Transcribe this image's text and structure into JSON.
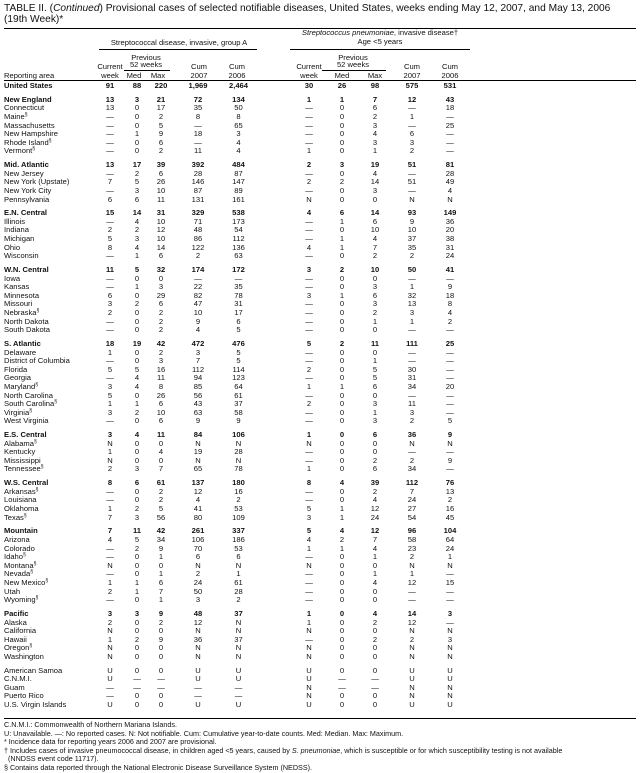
{
  "title": {
    "prefix": "TABLE II. (",
    "continued": "Continued",
    "rest": ") Provisional cases of selected notifiable diseases, United States, weeks ending May 12, 2007, and May 13, 2006",
    "line2": "(19th Week)*"
  },
  "headers": {
    "group_a": "Streptococcal disease, invasive, group A",
    "pneumo_italic": "Streptococcus pneumoniae",
    "pneumo_rest": ", invasive disease†",
    "pneumo_age": "Age <5 years",
    "previous": "Previous",
    "weeks52": "52 weeks",
    "reporting_area": "Reporting area",
    "current": "Current",
    "week": "week",
    "med": "Med",
    "max": "Max",
    "cum": "Cum",
    "y2007": "2007",
    "y2006": "2006"
  },
  "rows": [
    {
      "area": "United States",
      "bold": true,
      "v": [
        "91",
        "88",
        "220",
        "1,969",
        "2,464",
        "30",
        "26",
        "98",
        "575",
        "531"
      ]
    },
    {
      "gap": true
    },
    {
      "area": "New England",
      "bold": true,
      "v": [
        "13",
        "3",
        "21",
        "72",
        "134",
        "1",
        "1",
        "7",
        "12",
        "43"
      ]
    },
    {
      "area": "Connecticut",
      "v": [
        "13",
        "0",
        "17",
        "35",
        "50",
        "—",
        "0",
        "6",
        "—",
        "18"
      ]
    },
    {
      "area": "Maine",
      "note": "§",
      "v": [
        "—",
        "0",
        "2",
        "8",
        "8",
        "—",
        "0",
        "2",
        "1",
        "—"
      ]
    },
    {
      "area": "Massachusetts",
      "v": [
        "—",
        "0",
        "5",
        "—",
        "65",
        "—",
        "0",
        "3",
        "—",
        "25"
      ]
    },
    {
      "area": "New Hampshire",
      "v": [
        "—",
        "1",
        "9",
        "18",
        "3",
        "—",
        "0",
        "4",
        "6",
        "—"
      ]
    },
    {
      "area": "Rhode Island",
      "note": "§",
      "v": [
        "—",
        "0",
        "6",
        "—",
        "4",
        "—",
        "0",
        "3",
        "3",
        "—"
      ]
    },
    {
      "area": "Vermont",
      "note": "§",
      "v": [
        "—",
        "0",
        "2",
        "11",
        "4",
        "1",
        "0",
        "1",
        "2",
        "—"
      ]
    },
    {
      "gap": true
    },
    {
      "area": "Mid. Atlantic",
      "bold": true,
      "v": [
        "13",
        "17",
        "39",
        "392",
        "484",
        "2",
        "3",
        "19",
        "51",
        "81"
      ]
    },
    {
      "area": "New Jersey",
      "v": [
        "—",
        "2",
        "6",
        "28",
        "87",
        "—",
        "0",
        "4",
        "—",
        "28"
      ]
    },
    {
      "area": "New York (Upstate)",
      "v": [
        "7",
        "5",
        "26",
        "146",
        "147",
        "2",
        "2",
        "14",
        "51",
        "49"
      ]
    },
    {
      "area": "New York City",
      "v": [
        "—",
        "3",
        "10",
        "87",
        "89",
        "—",
        "0",
        "3",
        "—",
        "4"
      ]
    },
    {
      "area": "Pennsylvania",
      "v": [
        "6",
        "6",
        "11",
        "131",
        "161",
        "N",
        "0",
        "0",
        "N",
        "N"
      ]
    },
    {
      "gap": true
    },
    {
      "area": "E.N. Central",
      "bold": true,
      "v": [
        "15",
        "14",
        "31",
        "329",
        "538",
        "4",
        "6",
        "14",
        "93",
        "149"
      ]
    },
    {
      "area": "Illinois",
      "v": [
        "—",
        "4",
        "10",
        "71",
        "173",
        "—",
        "1",
        "6",
        "9",
        "36"
      ]
    },
    {
      "area": "Indiana",
      "v": [
        "2",
        "2",
        "12",
        "48",
        "54",
        "—",
        "0",
        "10",
        "10",
        "20"
      ]
    },
    {
      "area": "Michigan",
      "v": [
        "5",
        "3",
        "10",
        "86",
        "112",
        "—",
        "1",
        "4",
        "37",
        "38"
      ]
    },
    {
      "area": "Ohio",
      "v": [
        "8",
        "4",
        "14",
        "122",
        "136",
        "4",
        "1",
        "7",
        "35",
        "31"
      ]
    },
    {
      "area": "Wisconsin",
      "v": [
        "—",
        "1",
        "6",
        "2",
        "63",
        "—",
        "0",
        "2",
        "2",
        "24"
      ]
    },
    {
      "gap": true
    },
    {
      "area": "W.N. Central",
      "bold": true,
      "v": [
        "11",
        "5",
        "32",
        "174",
        "172",
        "3",
        "2",
        "10",
        "50",
        "41"
      ]
    },
    {
      "area": "Iowa",
      "v": [
        "—",
        "0",
        "0",
        "—",
        "—",
        "—",
        "0",
        "0",
        "—",
        "—"
      ]
    },
    {
      "area": "Kansas",
      "v": [
        "—",
        "1",
        "3",
        "22",
        "35",
        "—",
        "0",
        "3",
        "1",
        "9"
      ]
    },
    {
      "area": "Minnesota",
      "v": [
        "6",
        "0",
        "29",
        "82",
        "78",
        "3",
        "1",
        "6",
        "32",
        "18"
      ]
    },
    {
      "area": "Missouri",
      "v": [
        "3",
        "2",
        "6",
        "47",
        "31",
        "—",
        "0",
        "3",
        "13",
        "8"
      ]
    },
    {
      "area": "Nebraska",
      "note": "§",
      "v": [
        "2",
        "0",
        "2",
        "10",
        "17",
        "—",
        "0",
        "2",
        "3",
        "4"
      ]
    },
    {
      "area": "North Dakota",
      "v": [
        "—",
        "0",
        "2",
        "9",
        "6",
        "—",
        "0",
        "1",
        "1",
        "2"
      ]
    },
    {
      "area": "South Dakota",
      "v": [
        "—",
        "0",
        "2",
        "4",
        "5",
        "—",
        "0",
        "0",
        "—",
        "—"
      ]
    },
    {
      "gap": true
    },
    {
      "area": "S. Atlantic",
      "bold": true,
      "v": [
        "18",
        "19",
        "42",
        "472",
        "476",
        "5",
        "2",
        "11",
        "111",
        "25"
      ]
    },
    {
      "area": "Delaware",
      "v": [
        "1",
        "0",
        "2",
        "3",
        "5",
        "—",
        "0",
        "0",
        "—",
        "—"
      ]
    },
    {
      "area": "District of Columbia",
      "v": [
        "—",
        "0",
        "3",
        "7",
        "5",
        "—",
        "0",
        "1",
        "—",
        "—"
      ]
    },
    {
      "area": "Florida",
      "v": [
        "5",
        "5",
        "16",
        "112",
        "114",
        "2",
        "0",
        "5",
        "30",
        "—"
      ]
    },
    {
      "area": "Georgia",
      "v": [
        "—",
        "4",
        "11",
        "94",
        "123",
        "—",
        "0",
        "5",
        "31",
        "—"
      ]
    },
    {
      "area": "Maryland",
      "note": "§",
      "v": [
        "3",
        "4",
        "8",
        "85",
        "64",
        "1",
        "1",
        "6",
        "34",
        "20"
      ]
    },
    {
      "area": "North Carolina",
      "v": [
        "5",
        "0",
        "26",
        "56",
        "61",
        "—",
        "0",
        "0",
        "—",
        "—"
      ]
    },
    {
      "area": "South Carolina",
      "note": "§",
      "v": [
        "1",
        "1",
        "6",
        "43",
        "37",
        "2",
        "0",
        "3",
        "11",
        "—"
      ]
    },
    {
      "area": "Virginia",
      "note": "§",
      "v": [
        "3",
        "2",
        "10",
        "63",
        "58",
        "—",
        "0",
        "1",
        "3",
        "—"
      ]
    },
    {
      "area": "West Virginia",
      "v": [
        "—",
        "0",
        "6",
        "9",
        "9",
        "—",
        "0",
        "3",
        "2",
        "5"
      ]
    },
    {
      "gap": true
    },
    {
      "area": "E.S. Central",
      "bold": true,
      "v": [
        "3",
        "4",
        "11",
        "84",
        "106",
        "1",
        "0",
        "6",
        "36",
        "9"
      ]
    },
    {
      "area": "Alabama",
      "note": "§",
      "v": [
        "N",
        "0",
        "0",
        "N",
        "N",
        "N",
        "0",
        "0",
        "N",
        "N"
      ]
    },
    {
      "area": "Kentucky",
      "v": [
        "1",
        "0",
        "4",
        "19",
        "28",
        "—",
        "0",
        "0",
        "—",
        "—"
      ]
    },
    {
      "area": "Mississippi",
      "v": [
        "N",
        "0",
        "0",
        "N",
        "N",
        "—",
        "0",
        "2",
        "2",
        "9"
      ]
    },
    {
      "area": "Tennessee",
      "note": "§",
      "v": [
        "2",
        "3",
        "7",
        "65",
        "78",
        "1",
        "0",
        "6",
        "34",
        "—"
      ]
    },
    {
      "gap": true
    },
    {
      "area": "W.S. Central",
      "bold": true,
      "v": [
        "8",
        "6",
        "61",
        "137",
        "180",
        "8",
        "4",
        "39",
        "112",
        "76"
      ]
    },
    {
      "area": "Arkansas",
      "note": "§",
      "v": [
        "—",
        "0",
        "2",
        "12",
        "16",
        "—",
        "0",
        "2",
        "7",
        "13"
      ]
    },
    {
      "area": "Louisiana",
      "v": [
        "—",
        "0",
        "2",
        "4",
        "2",
        "—",
        "0",
        "4",
        "24",
        "2"
      ]
    },
    {
      "area": "Oklahoma",
      "v": [
        "1",
        "2",
        "5",
        "41",
        "53",
        "5",
        "1",
        "12",
        "27",
        "16"
      ]
    },
    {
      "area": "Texas",
      "note": "§",
      "v": [
        "7",
        "3",
        "56",
        "80",
        "109",
        "3",
        "1",
        "24",
        "54",
        "45"
      ]
    },
    {
      "gap": true
    },
    {
      "area": "Mountain",
      "bold": true,
      "v": [
        "7",
        "11",
        "42",
        "261",
        "337",
        "5",
        "4",
        "12",
        "96",
        "104"
      ]
    },
    {
      "area": "Arizona",
      "v": [
        "4",
        "5",
        "34",
        "106",
        "186",
        "4",
        "2",
        "7",
        "58",
        "64"
      ]
    },
    {
      "area": "Colorado",
      "v": [
        "—",
        "2",
        "9",
        "70",
        "53",
        "1",
        "1",
        "4",
        "23",
        "24"
      ]
    },
    {
      "area": "Idaho",
      "note": "§",
      "v": [
        "—",
        "0",
        "1",
        "6",
        "6",
        "—",
        "0",
        "1",
        "2",
        "1"
      ]
    },
    {
      "area": "Montana",
      "note": "§",
      "v": [
        "N",
        "0",
        "0",
        "N",
        "N",
        "N",
        "0",
        "0",
        "N",
        "N"
      ]
    },
    {
      "area": "Nevada",
      "note": "§",
      "v": [
        "—",
        "0",
        "1",
        "2",
        "1",
        "—",
        "0",
        "1",
        "1",
        "—"
      ]
    },
    {
      "area": "New Mexico",
      "note": "§",
      "v": [
        "1",
        "1",
        "6",
        "24",
        "61",
        "—",
        "0",
        "4",
        "12",
        "15"
      ]
    },
    {
      "area": "Utah",
      "v": [
        "2",
        "1",
        "7",
        "50",
        "28",
        "—",
        "0",
        "0",
        "—",
        "—"
      ]
    },
    {
      "area": "Wyoming",
      "note": "§",
      "v": [
        "—",
        "0",
        "1",
        "3",
        "2",
        "—",
        "0",
        "0",
        "—",
        "—"
      ]
    },
    {
      "gap": true
    },
    {
      "area": "Pacific",
      "bold": true,
      "v": [
        "3",
        "3",
        "9",
        "48",
        "37",
        "1",
        "0",
        "4",
        "14",
        "3"
      ]
    },
    {
      "area": "Alaska",
      "v": [
        "2",
        "0",
        "2",
        "12",
        "N",
        "1",
        "0",
        "2",
        "12",
        "—"
      ]
    },
    {
      "area": "California",
      "v": [
        "N",
        "0",
        "0",
        "N",
        "N",
        "N",
        "0",
        "0",
        "N",
        "N"
      ]
    },
    {
      "area": "Hawaii",
      "v": [
        "1",
        "2",
        "9",
        "36",
        "37",
        "—",
        "0",
        "2",
        "2",
        "3"
      ]
    },
    {
      "area": "Oregon",
      "note": "§",
      "v": [
        "N",
        "0",
        "0",
        "N",
        "N",
        "N",
        "0",
        "0",
        "N",
        "N"
      ]
    },
    {
      "area": "Washington",
      "v": [
        "N",
        "0",
        "0",
        "N",
        "N",
        "N",
        "0",
        "0",
        "N",
        "N"
      ]
    },
    {
      "gap": true
    },
    {
      "area": "American Samoa",
      "v": [
        "U",
        "0",
        "0",
        "U",
        "U",
        "U",
        "0",
        "0",
        "U",
        "U"
      ]
    },
    {
      "area": "C.N.M.I.",
      "v": [
        "U",
        "—",
        "—",
        "U",
        "U",
        "U",
        "—",
        "—",
        "U",
        "U"
      ]
    },
    {
      "area": "Guam",
      "v": [
        "—",
        "—",
        "—",
        "—",
        "—",
        "N",
        "—",
        "—",
        "N",
        "N"
      ]
    },
    {
      "area": "Puerto Rico",
      "v": [
        "—",
        "0",
        "0",
        "—",
        "—",
        "N",
        "0",
        "0",
        "N",
        "N"
      ]
    },
    {
      "area": "U.S. Virgin Islands",
      "v": [
        "U",
        "0",
        "0",
        "U",
        "U",
        "U",
        "0",
        "0",
        "U",
        "U"
      ]
    }
  ],
  "footnotes": {
    "cnmi": "C.N.M.I.: Commonwealth of Northern Mariana Islands.",
    "legend": "U: Unavailable.   —: No reported cases.   N: Not notifiable.   Cum: Cumulative year-to-date counts.   Med: Median.   Max: Maximum.",
    "star": "* Incidence data for reporting years 2006 and 2007 are provisional.",
    "dagger_a": "† Includes cases of invasive pneumococcal disease, in children aged <5 years, caused by ",
    "dagger_i": "S. pneumoniae",
    "dagger_b": ", which is susceptible or for which susceptibility testing is not available",
    "dagger_c": "(NNDSS event code 11717).",
    "section": "§ Contains data reported through the National Electronic Disease Surveillance System (NEDSS)."
  }
}
